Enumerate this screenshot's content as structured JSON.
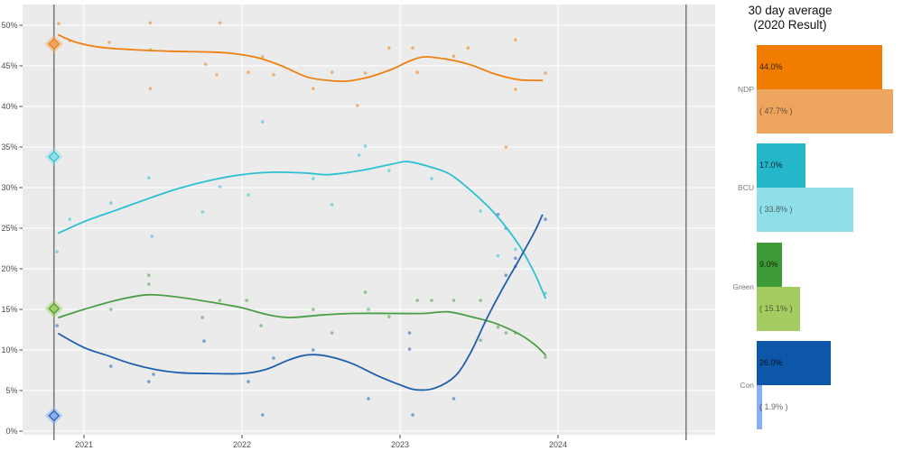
{
  "legend": {
    "title_line1": "30 day average",
    "title_line2": "(2020 Result)",
    "parties": [
      {
        "name": "NDP",
        "avg_label": "44.0%",
        "result_label": "( 47.7% )",
        "avg": 44.0,
        "result": 47.7,
        "color_dark": "#f07d00",
        "color_light": "#eda55e"
      },
      {
        "name": "BCU",
        "avg_label": "17.0%",
        "result_label": "( 33.8% )",
        "avg": 17.0,
        "result": 33.8,
        "color_dark": "#25b6ca",
        "color_light": "#8fdfe9"
      },
      {
        "name": "Green",
        "avg_label": "9.0%",
        "result_label": "( 15.1% )",
        "avg": 9.0,
        "result": 15.1,
        "color_dark": "#3f9b37",
        "color_light": "#a4cc60"
      },
      {
        "name": "Con",
        "avg_label": "26.0%",
        "result_label": "( 1.9% )",
        "avg": 26.0,
        "result": 1.9,
        "color_dark": "#0e56a7",
        "color_light": "#8cadf1"
      }
    ]
  },
  "style": {
    "panel_background": "#ebebeb",
    "gridline_color": "#ffffff",
    "election_line_color": "#7d7d7d",
    "tick_text_color": "#4d4d4d",
    "tick_mark_color": "#333333"
  },
  "chart_data": {
    "type": "line",
    "title": "",
    "xlabel": "",
    "ylabel": "",
    "xlim": [
      2020.61,
      2024.99
    ],
    "ylim": [
      0,
      52.5
    ],
    "grid": "on",
    "y_ticks": [
      {
        "label": "0%",
        "pct": 0
      },
      {
        "label": "5%",
        "pct": 5
      },
      {
        "label": "10%",
        "pct": 10
      },
      {
        "label": "15%",
        "pct": 15
      },
      {
        "label": "20%",
        "pct": 20
      },
      {
        "label": "25%",
        "pct": 25
      },
      {
        "label": "30%",
        "pct": 30
      },
      {
        "label": "35%",
        "pct": 35
      },
      {
        "label": "40%",
        "pct": 40
      },
      {
        "label": "45%",
        "pct": 45
      },
      {
        "label": "50%",
        "pct": 50
      }
    ],
    "x_ticks": [
      {
        "label": "2021",
        "year": 2021
      },
      {
        "label": "2022",
        "year": 2022
      },
      {
        "label": "2023",
        "year": 2023
      },
      {
        "label": "2024",
        "year": 2024
      }
    ],
    "election_lines": [
      2020.81,
      2024.81
    ],
    "series": [
      {
        "name": "NDP",
        "color": "#ee8012",
        "color_light": "#eda55e",
        "result_2020": 47.7,
        "avg_30day": 44.0,
        "trend": [
          [
            2020.84,
            48.8
          ],
          [
            2020.95,
            47.9
          ],
          [
            2021.1,
            47.3
          ],
          [
            2021.3,
            47.0
          ],
          [
            2021.55,
            46.8
          ],
          [
            2021.8,
            46.7
          ],
          [
            2021.95,
            46.5
          ],
          [
            2022.1,
            46.0
          ],
          [
            2022.25,
            45.0
          ],
          [
            2022.4,
            43.7
          ],
          [
            2022.5,
            43.3
          ],
          [
            2022.65,
            43.1
          ],
          [
            2022.8,
            43.6
          ],
          [
            2022.95,
            44.6
          ],
          [
            2023.05,
            45.5
          ],
          [
            2023.15,
            46.1
          ],
          [
            2023.3,
            45.8
          ],
          [
            2023.45,
            45.1
          ],
          [
            2023.6,
            44.0
          ],
          [
            2023.75,
            43.3
          ],
          [
            2023.9,
            43.2
          ]
        ],
        "polls": [
          [
            2020.84,
            50.2
          ],
          [
            2020.91,
            48.1
          ],
          [
            2021.16,
            47.9
          ],
          [
            2021.42,
            50.3
          ],
          [
            2021.42,
            47.0
          ],
          [
            2021.42,
            42.2
          ],
          [
            2021.77,
            45.2
          ],
          [
            2021.84,
            43.9
          ],
          [
            2021.86,
            50.3
          ],
          [
            2022.04,
            44.2
          ],
          [
            2022.13,
            46.1
          ],
          [
            2022.2,
            43.9
          ],
          [
            2022.45,
            42.2
          ],
          [
            2022.57,
            44.2
          ],
          [
            2022.73,
            40.1
          ],
          [
            2022.78,
            44.1
          ],
          [
            2022.93,
            47.2
          ],
          [
            2023.08,
            47.2
          ],
          [
            2023.11,
            44.2
          ],
          [
            2023.34,
            46.2
          ],
          [
            2023.43,
            47.2
          ],
          [
            2023.67,
            35.0
          ],
          [
            2023.73,
            48.2
          ],
          [
            2023.73,
            42.1
          ],
          [
            2023.92,
            44.1
          ]
        ]
      },
      {
        "name": "BCU",
        "color": "#2cc0d4",
        "color_light": "#8fdfe9",
        "result_2020": 33.8,
        "avg_30day": 17.0,
        "trend": [
          [
            2020.84,
            24.4
          ],
          [
            2021.0,
            25.8
          ],
          [
            2021.2,
            27.2
          ],
          [
            2021.4,
            28.6
          ],
          [
            2021.6,
            29.9
          ],
          [
            2021.8,
            30.9
          ],
          [
            2022.0,
            31.6
          ],
          [
            2022.2,
            31.9
          ],
          [
            2022.4,
            31.8
          ],
          [
            2022.55,
            31.6
          ],
          [
            2022.75,
            32.1
          ],
          [
            2022.95,
            32.9
          ],
          [
            2023.05,
            33.2
          ],
          [
            2023.2,
            32.5
          ],
          [
            2023.32,
            31.6
          ],
          [
            2023.45,
            29.6
          ],
          [
            2023.6,
            26.8
          ],
          [
            2023.75,
            23.0
          ],
          [
            2023.85,
            19.5
          ],
          [
            2023.92,
            16.4
          ]
        ],
        "polls": [
          [
            2020.83,
            22.1
          ],
          [
            2020.91,
            26.1
          ],
          [
            2021.17,
            28.1
          ],
          [
            2021.41,
            31.2
          ],
          [
            2021.43,
            24.0
          ],
          [
            2021.75,
            27.0
          ],
          [
            2021.86,
            30.1
          ],
          [
            2022.04,
            29.1
          ],
          [
            2022.13,
            38.1
          ],
          [
            2022.45,
            31.1
          ],
          [
            2022.57,
            27.9
          ],
          [
            2022.74,
            34.0
          ],
          [
            2022.78,
            35.1
          ],
          [
            2022.93,
            32.1
          ],
          [
            2023.2,
            31.1
          ],
          [
            2023.51,
            27.1
          ],
          [
            2023.62,
            21.6
          ],
          [
            2023.73,
            22.4
          ],
          [
            2023.92,
            17.0
          ]
        ]
      },
      {
        "name": "Green",
        "color": "#4a9e45",
        "color_light": "#a4cc60",
        "result_2020": 15.1,
        "avg_30day": 9.0,
        "trend": [
          [
            2020.84,
            14.0
          ],
          [
            2021.0,
            15.0
          ],
          [
            2021.2,
            16.1
          ],
          [
            2021.4,
            16.8
          ],
          [
            2021.6,
            16.5
          ],
          [
            2021.8,
            15.9
          ],
          [
            2022.0,
            15.2
          ],
          [
            2022.15,
            14.4
          ],
          [
            2022.3,
            14.0
          ],
          [
            2022.5,
            14.3
          ],
          [
            2022.7,
            14.5
          ],
          [
            2022.95,
            14.5
          ],
          [
            2023.15,
            14.5
          ],
          [
            2023.3,
            14.7
          ],
          [
            2023.45,
            14.1
          ],
          [
            2023.6,
            13.3
          ],
          [
            2023.75,
            12.0
          ],
          [
            2023.85,
            10.7
          ],
          [
            2023.92,
            9.4
          ]
        ],
        "polls": [
          [
            2021.17,
            15.0
          ],
          [
            2021.41,
            19.2
          ],
          [
            2021.41,
            18.1
          ],
          [
            2021.75,
            14.0
          ],
          [
            2021.86,
            16.1
          ],
          [
            2022.03,
            16.1
          ],
          [
            2022.12,
            13.0
          ],
          [
            2022.45,
            15.0
          ],
          [
            2022.57,
            12.1
          ],
          [
            2022.78,
            17.1
          ],
          [
            2022.8,
            15.0
          ],
          [
            2022.93,
            14.1
          ],
          [
            2023.11,
            16.1
          ],
          [
            2023.2,
            16.1
          ],
          [
            2023.34,
            16.1
          ],
          [
            2023.51,
            16.1
          ],
          [
            2023.51,
            11.2
          ],
          [
            2023.62,
            12.8
          ],
          [
            2023.67,
            12.1
          ],
          [
            2023.73,
            12.1
          ],
          [
            2023.92,
            9.1
          ]
        ]
      },
      {
        "name": "Con",
        "color": "#1d5fae",
        "color_light": "#8cadf1",
        "result_2020": 1.9,
        "avg_30day": 26.0,
        "trend": [
          [
            2020.84,
            12.0
          ],
          [
            2021.0,
            10.3
          ],
          [
            2021.15,
            9.3
          ],
          [
            2021.3,
            8.3
          ],
          [
            2021.45,
            7.6
          ],
          [
            2021.6,
            7.2
          ],
          [
            2021.8,
            7.1
          ],
          [
            2022.0,
            7.1
          ],
          [
            2022.15,
            7.6
          ],
          [
            2022.3,
            8.8
          ],
          [
            2022.42,
            9.4
          ],
          [
            2022.55,
            9.2
          ],
          [
            2022.7,
            8.3
          ],
          [
            2022.85,
            6.9
          ],
          [
            2023.0,
            5.7
          ],
          [
            2023.1,
            5.1
          ],
          [
            2023.22,
            5.3
          ],
          [
            2023.35,
            6.8
          ],
          [
            2023.45,
            9.8
          ],
          [
            2023.55,
            13.9
          ],
          [
            2023.65,
            17.6
          ],
          [
            2023.75,
            21.0
          ],
          [
            2023.85,
            24.5
          ],
          [
            2023.9,
            26.6
          ]
        ],
        "polls": [
          [
            2020.83,
            13.0
          ],
          [
            2021.17,
            8.0
          ],
          [
            2021.41,
            6.1
          ],
          [
            2021.44,
            7.0
          ],
          [
            2021.76,
            11.1
          ],
          [
            2022.04,
            6.1
          ],
          [
            2022.13,
            2.0
          ],
          [
            2022.2,
            9.0
          ],
          [
            2022.45,
            10.0
          ],
          [
            2022.8,
            4.0
          ],
          [
            2023.06,
            12.1
          ],
          [
            2023.06,
            10.1
          ],
          [
            2023.08,
            2.0
          ],
          [
            2023.34,
            4.0
          ],
          [
            2023.62,
            26.7
          ],
          [
            2023.67,
            25.0
          ],
          [
            2023.67,
            19.2
          ],
          [
            2023.73,
            20.3
          ],
          [
            2023.73,
            21.3
          ],
          [
            2023.92,
            26.1
          ]
        ]
      }
    ]
  }
}
